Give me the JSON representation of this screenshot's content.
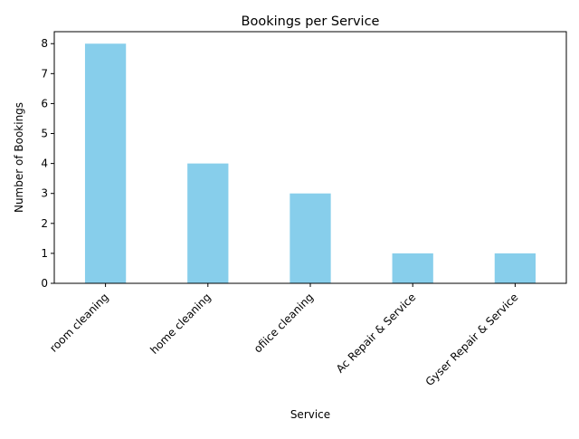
{
  "chart_data": {
    "type": "bar",
    "title": "Bookings per Service",
    "xlabel": "Service",
    "ylabel": "Number of Bookings",
    "categories": [
      "room cleaning",
      "home cleaning",
      "ofiice cleaning",
      "Ac Repair & Service",
      "Gyser Repair & Service"
    ],
    "values": [
      8,
      4,
      3,
      1,
      1
    ],
    "ylim": [
      0,
      8.4
    ],
    "yticks": [
      "0",
      "1",
      "2",
      "3",
      "4",
      "5",
      "6",
      "7",
      "8"
    ],
    "bar_color": "#87ceeb",
    "grid": false,
    "legend": "none"
  }
}
